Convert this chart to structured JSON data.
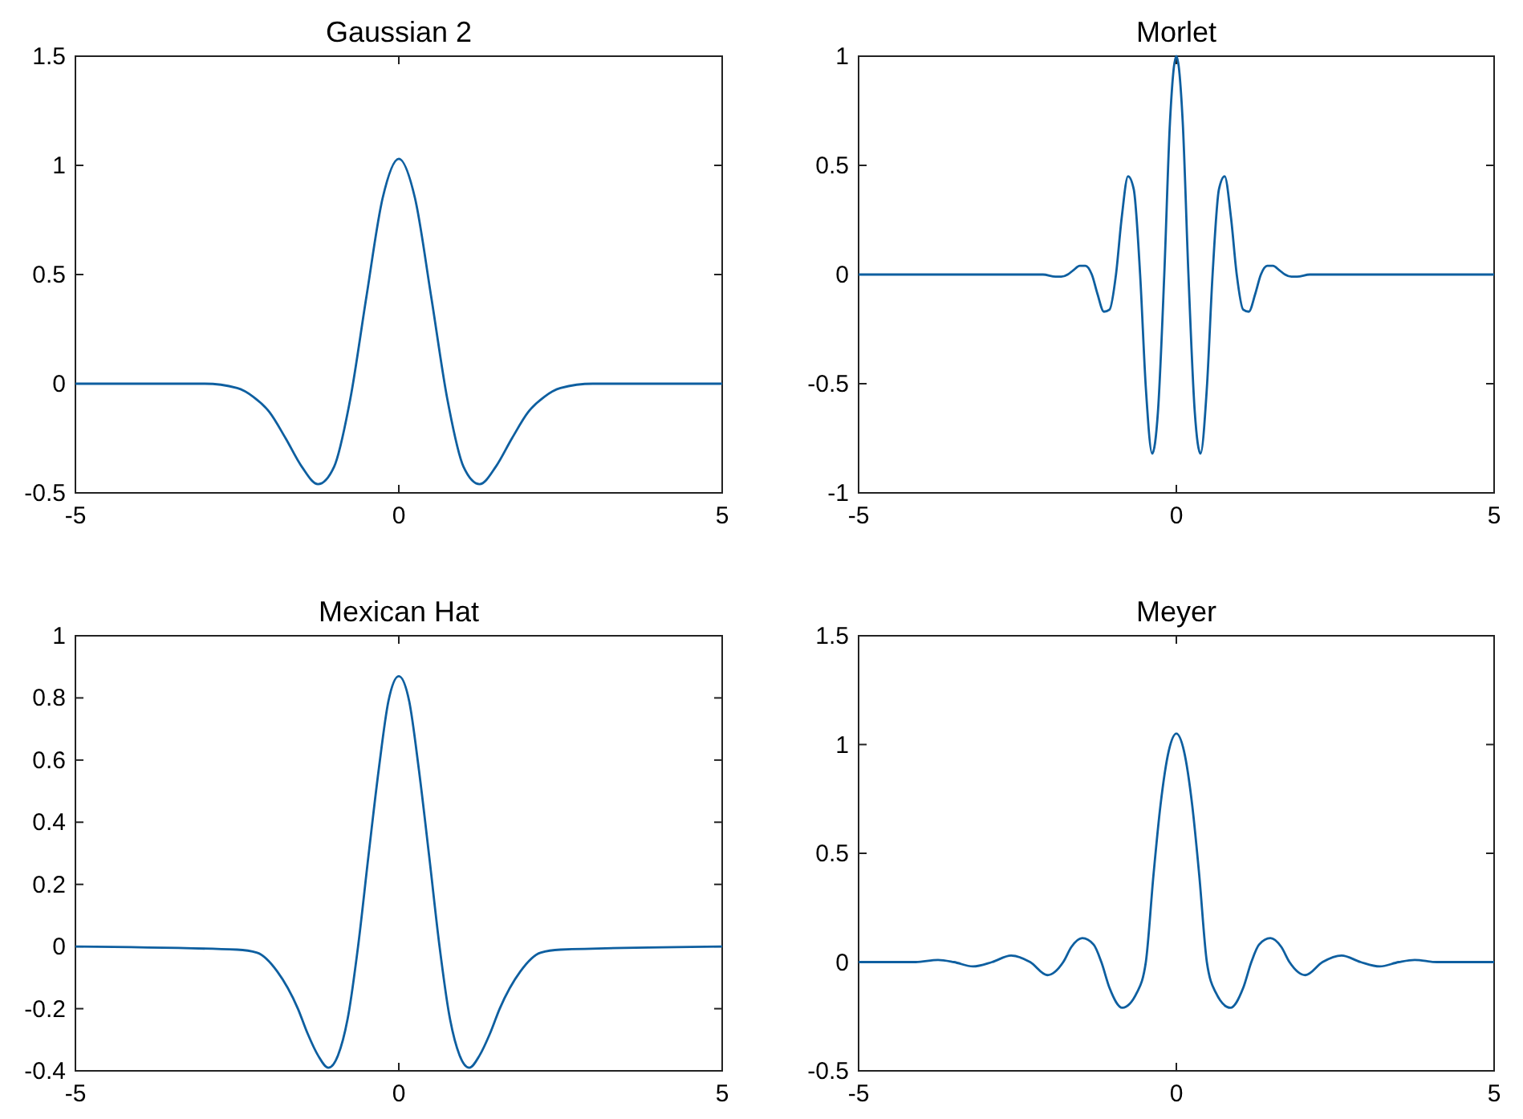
{
  "chart_data": [
    {
      "type": "line",
      "title": "Gaussian 2",
      "color": "#0e5fa0",
      "xlim": [
        -5,
        5
      ],
      "xticks": [
        -5,
        0,
        5
      ],
      "ylim": [
        -0.5,
        1.5
      ],
      "yticks": [
        -0.5,
        0,
        0.5,
        1,
        1.5
      ],
      "grid": false,
      "x": [
        -5,
        -3,
        -2.5,
        -2.25,
        -2,
        -1.75,
        -1.5,
        -1.25,
        -1,
        -0.75,
        -0.5,
        -0.25,
        0,
        0.25,
        0.5,
        0.75,
        1,
        1.25,
        1.5,
        1.75,
        2,
        2.25,
        2.5,
        3,
        5
      ],
      "values": [
        0,
        0,
        -0.02,
        -0.06,
        -0.13,
        -0.25,
        -0.38,
        -0.46,
        -0.38,
        -0.07,
        0.4,
        0.85,
        1.03,
        0.85,
        0.4,
        -0.07,
        -0.38,
        -0.46,
        -0.38,
        -0.25,
        -0.13,
        -0.06,
        -0.02,
        0,
        0
      ]
    },
    {
      "type": "line",
      "title": "Morlet",
      "color": "#0e5fa0",
      "xlim": [
        -5,
        5
      ],
      "xticks": [
        -5,
        0,
        5
      ],
      "ylim": [
        -1,
        1
      ],
      "yticks": [
        -1,
        -0.5,
        0,
        0.5,
        1
      ],
      "grid": false,
      "x": [
        -5,
        -2.1,
        -1.9,
        -1.81,
        -1.71,
        -1.62,
        -1.52,
        -1.43,
        -1.33,
        -1.24,
        -1.14,
        -1.05,
        -0.95,
        -0.86,
        -0.76,
        -0.67,
        -0.57,
        -0.48,
        -0.38,
        -0.29,
        -0.19,
        -0.1,
        0,
        0.1,
        0.19,
        0.29,
        0.38,
        0.48,
        0.57,
        0.67,
        0.76,
        0.86,
        0.95,
        1.05,
        1.14,
        1.24,
        1.33,
        1.43,
        1.52,
        1.62,
        1.71,
        1.81,
        1.9,
        2.1,
        5
      ],
      "values": [
        0,
        0,
        -0.01,
        -0.01,
        0,
        0.02,
        0.04,
        0.04,
        0,
        -0.09,
        -0.17,
        -0.16,
        0,
        0.26,
        0.45,
        0.39,
        0,
        -0.52,
        -0.82,
        -0.63,
        0,
        0.7,
        1,
        0.7,
        0,
        -0.63,
        -0.82,
        -0.52,
        0,
        0.39,
        0.45,
        0.26,
        0,
        -0.16,
        -0.17,
        -0.09,
        0,
        0.04,
        0.04,
        0.02,
        0,
        -0.01,
        -0.01,
        0,
        0
      ]
    },
    {
      "type": "line",
      "title": "Mexican Hat",
      "color": "#0e5fa0",
      "xlim": [
        -5,
        5
      ],
      "xticks": [
        -5,
        0,
        5
      ],
      "ylim": [
        -0.4,
        1
      ],
      "yticks": [
        -0.4,
        -0.2,
        0,
        0.2,
        0.4,
        0.6,
        0.8,
        1
      ],
      "grid": false,
      "x": [
        -5,
        -2.5,
        -2.19,
        -1.88,
        -1.56,
        -1.41,
        -1.25,
        -1.09,
        -0.94,
        -0.78,
        -0.63,
        -0.47,
        -0.31,
        -0.16,
        0,
        0.16,
        0.31,
        0.47,
        0.63,
        0.78,
        0.94,
        1.09,
        1.25,
        1.41,
        1.56,
        1.88,
        2.19,
        2.5,
        5
      ],
      "values": [
        0,
        -0.01,
        -0.02,
        -0.08,
        -0.2,
        -0.28,
        -0.35,
        -0.39,
        -0.35,
        -0.22,
        0,
        0.29,
        0.57,
        0.79,
        0.87,
        0.79,
        0.57,
        0.29,
        0,
        -0.22,
        -0.35,
        -0.39,
        -0.35,
        -0.28,
        -0.2,
        -0.08,
        -0.02,
        -0.01,
        0
      ]
    },
    {
      "type": "line",
      "title": "Meyer",
      "color": "#0e5fa0",
      "xlim": [
        -5,
        5
      ],
      "xticks": [
        -5,
        0,
        5
      ],
      "ylim": [
        -0.5,
        1.5
      ],
      "yticks": [
        -0.5,
        0,
        0.5,
        1,
        1.5
      ],
      "grid": false,
      "x": [
        -5,
        -4.4,
        -4.1,
        -3.75,
        -3.5,
        -3.2,
        -2.9,
        -2.6,
        -2.3,
        -2.03,
        -1.78,
        -1.65,
        -1.48,
        -1.3,
        -1.18,
        -1.05,
        -0.85,
        -0.62,
        -0.48,
        -0.36,
        -0.25,
        -0.12,
        0,
        0.12,
        0.25,
        0.36,
        0.48,
        0.62,
        0.85,
        1.05,
        1.18,
        1.3,
        1.48,
        1.65,
        1.78,
        2.03,
        2.3,
        2.6,
        2.9,
        3.2,
        3.5,
        3.75,
        4.1,
        4.4,
        5
      ],
      "values": [
        0,
        0,
        0,
        0.01,
        0,
        -0.02,
        0,
        0.03,
        0,
        -0.06,
        0,
        0.07,
        0.11,
        0.08,
        0,
        -0.12,
        -0.21,
        -0.14,
        0,
        0.4,
        0.72,
        0.97,
        1.05,
        0.97,
        0.72,
        0.4,
        0,
        -0.14,
        -0.21,
        -0.12,
        0,
        0.08,
        0.11,
        0.07,
        0,
        -0.06,
        0,
        0.03,
        0,
        -0.02,
        0,
        0.01,
        0,
        0,
        0
      ]
    }
  ]
}
